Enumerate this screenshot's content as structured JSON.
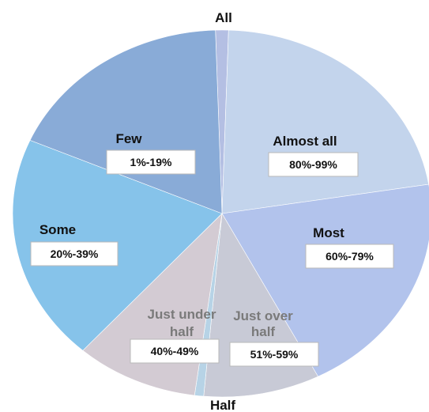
{
  "chart_data": {
    "type": "pie",
    "title": "",
    "slices": [
      {
        "name": "All",
        "value": 1,
        "range": "",
        "color": "#b4bfe3",
        "label_color": "#111111"
      },
      {
        "name": "Almost all",
        "value": 22,
        "range": "80%-99%",
        "color": "#c3d4ec",
        "label_color": "#111111"
      },
      {
        "name": "Most",
        "value": 20,
        "range": "60%-79%",
        "color": "#b2c3ec",
        "label_color": "#111111"
      },
      {
        "name": "Just over half",
        "value": 9,
        "range": "51%-59%",
        "color": "#c8cad6",
        "label_color": "#7a7a7a"
      },
      {
        "name": "Half",
        "value": 0.7,
        "range": "",
        "color": "#b7d3e6",
        "label_color": "#111111"
      },
      {
        "name": "Just under half",
        "value": 9.5,
        "range": "40%-49%",
        "color": "#d3cbd3",
        "label_color": "#7a7a7a"
      },
      {
        "name": "Some",
        "value": 20,
        "range": "20%-39%",
        "color": "#86c3ea",
        "label_color": "#111111"
      },
      {
        "name": "Few",
        "value": 18,
        "range": "1%-19%",
        "color": "#89abd7",
        "label_color": "#111111"
      }
    ]
  }
}
